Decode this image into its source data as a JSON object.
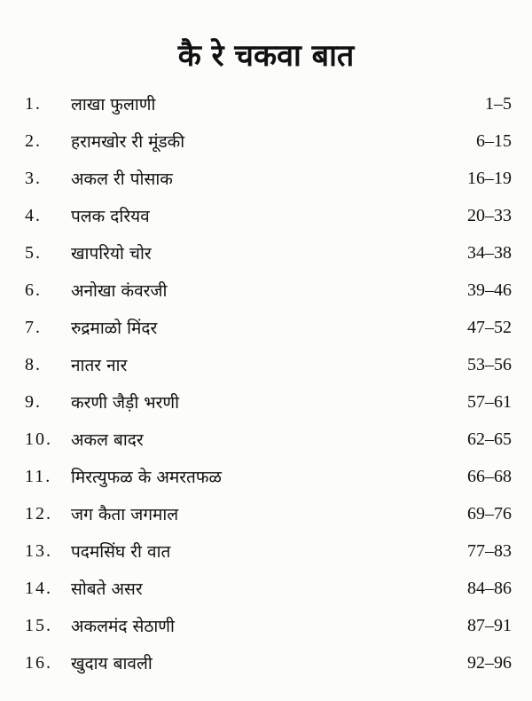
{
  "title": "कै रे चकवा बात",
  "entries": [
    {
      "num": "1.",
      "name": "लाखा फुलाणी",
      "pages": "1–5"
    },
    {
      "num": "2.",
      "name": "हरामखोर री मूंडकी",
      "pages": "6–15"
    },
    {
      "num": "3.",
      "name": "अकल री पोसाक",
      "pages": "16–19"
    },
    {
      "num": "4.",
      "name": "पलक दरियव",
      "pages": "20–33"
    },
    {
      "num": "5.",
      "name": "खापरियो चोर",
      "pages": "34–38"
    },
    {
      "num": "6.",
      "name": "अनोखा कंवरजी",
      "pages": "39–46"
    },
    {
      "num": "7.",
      "name": "रुद्रमाळो मिंदर",
      "pages": "47–52"
    },
    {
      "num": "8.",
      "name": "नातर नार",
      "pages": "53–56"
    },
    {
      "num": "9.",
      "name": "करणी जैड़ी भरणी",
      "pages": "57–61"
    },
    {
      "num": "10.",
      "name": "अकल बादर",
      "pages": "62–65"
    },
    {
      "num": "11.",
      "name": "मिरत्युफळ के अमरतफळ",
      "pages": "66–68"
    },
    {
      "num": "12.",
      "name": "जग कैता जगमाल",
      "pages": "69–76"
    },
    {
      "num": "13.",
      "name": "पदमसिंघ री वात",
      "pages": "77–83"
    },
    {
      "num": "14.",
      "name": "सोबते असर",
      "pages": "84–86"
    },
    {
      "num": "15.",
      "name": "अकलमंद सेठाणी",
      "pages": "87–91"
    },
    {
      "num": "16.",
      "name": "खुदाय बावली",
      "pages": "92–96"
    }
  ]
}
